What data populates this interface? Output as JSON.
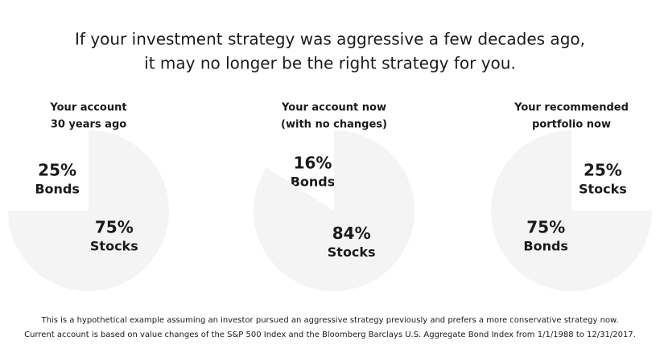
{
  "title": [
    "If your investment strategy was aggressive a few decades ago,",
    "it may no longer be the right strategy for you."
  ],
  "footnote": [
    "This is a hypothetical example assuming an investor pursued an aggressive strategy previously and prefers a more conservative strategy now.",
    "Current account is based on value changes of the S&P 500 Index and the Bloomberg Barclays U.S. Aggregate Bond Index from 1/1/1988 to 12/31/2017."
  ],
  "chart_data": [
    {
      "type": "pie",
      "title": [
        "Your account",
        "30 years ago"
      ],
      "categories": [
        "Bonds",
        "Stocks"
      ],
      "values": [
        25,
        75
      ],
      "value_labels": [
        "25%",
        "75%"
      ],
      "colors": [
        "#ffffff",
        "#f4f4f4"
      ],
      "direction": "counterclockwise"
    },
    {
      "type": "pie",
      "title": [
        "Your account now",
        "(with no changes)"
      ],
      "categories": [
        "Bonds",
        "Stocks"
      ],
      "values": [
        16,
        84
      ],
      "value_labels": [
        "16%",
        "84%"
      ],
      "colors": [
        "#ffffff",
        "#f4f4f4"
      ],
      "direction": "counterclockwise"
    },
    {
      "type": "pie",
      "title": [
        "Your recommended",
        "portfolio now"
      ],
      "categories": [
        "Stocks",
        "Bonds"
      ],
      "values": [
        25,
        75
      ],
      "value_labels": [
        "25%",
        "75%"
      ],
      "colors": [
        "#ffffff",
        "#f4f4f4"
      ],
      "direction": "clockwise"
    }
  ]
}
